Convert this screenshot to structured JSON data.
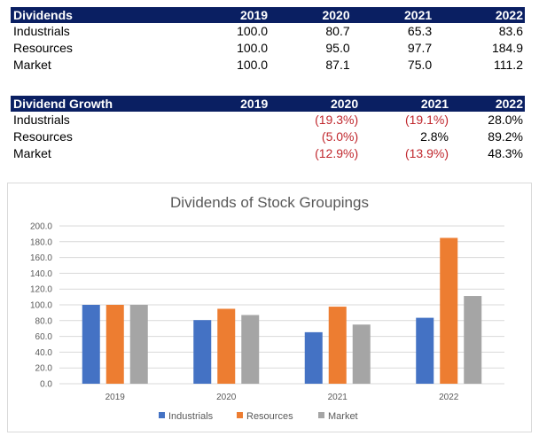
{
  "dividends_table": {
    "header": [
      "Dividends",
      "2019",
      "2020",
      "2021",
      "2022"
    ],
    "rows": [
      [
        "Industrials",
        "100.0",
        "80.7",
        "65.3",
        "83.6"
      ],
      [
        "Resources",
        "100.0",
        "95.0",
        "97.7",
        "184.9"
      ],
      [
        "Market",
        "100.0",
        "87.1",
        "75.0",
        "111.2"
      ]
    ]
  },
  "growth_table": {
    "header": [
      "Dividend Growth",
      "2019",
      "2020",
      "2021",
      "2022"
    ],
    "rows": [
      [
        "Industrials",
        "",
        "(19.3%)",
        "(19.1%)",
        "28.0%"
      ],
      [
        "Resources",
        "",
        "(5.0%)",
        "2.8%",
        "89.2%"
      ],
      [
        "Market",
        "",
        "(12.9%)",
        "(13.9%)",
        "48.3%"
      ]
    ]
  },
  "chart_data": {
    "type": "bar",
    "title": "Dividends of Stock Groupings",
    "categories": [
      "2019",
      "2020",
      "2021",
      "2022"
    ],
    "series": [
      {
        "name": "Industrials",
        "values": [
          100.0,
          80.7,
          65.3,
          83.6
        ],
        "color": "#4472c4"
      },
      {
        "name": "Resources",
        "values": [
          100.0,
          95.0,
          97.7,
          184.9
        ],
        "color": "#ed7d31"
      },
      {
        "name": "Market",
        "values": [
          100.0,
          87.1,
          75.0,
          111.2
        ],
        "color": "#a5a5a5"
      }
    ],
    "ylim": [
      0,
      200
    ],
    "yticks": [
      "0.0",
      "20.0",
      "40.0",
      "60.0",
      "80.0",
      "100.0",
      "120.0",
      "140.0",
      "160.0",
      "180.0",
      "200.0"
    ],
    "grid": true,
    "legend": "bottom",
    "negative_color": "#c0272d"
  }
}
